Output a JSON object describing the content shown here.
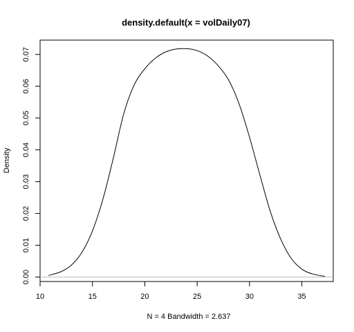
{
  "chart_data": {
    "type": "line",
    "title": "density.default(x = volDaily07)",
    "xlabel": "N = 4   Bandwidth = 2.637",
    "ylabel": "Density",
    "xlim": [
      10.0,
      38.0
    ],
    "ylim": [
      -0.0014,
      0.0745
    ],
    "x_ticks": [
      10,
      15,
      20,
      25,
      30,
      35
    ],
    "y_ticks": [
      0.0,
      0.01,
      0.02,
      0.03,
      0.04,
      0.05,
      0.06,
      0.07
    ],
    "x_tick_labels": [
      "10",
      "15",
      "20",
      "25",
      "30",
      "35"
    ],
    "y_tick_labels": [
      "0.00",
      "0.01",
      "0.02",
      "0.03",
      "0.04",
      "0.05",
      "0.06",
      "0.07"
    ],
    "grid": false,
    "baseline": {
      "y": 0,
      "color": "#bebebe"
    },
    "series": [
      {
        "color": "#000000",
        "x": [
          10.8,
          12.0,
          13.0,
          14.0,
          15.0,
          16.0,
          17.0,
          18.0,
          19.0,
          20.0,
          21.0,
          22.0,
          23.0,
          24.0,
          25.0,
          26.0,
          27.0,
          28.0,
          29.0,
          30.0,
          31.0,
          32.0,
          33.0,
          34.0,
          35.0,
          36.0,
          37.2
        ],
        "y": [
          0.0005,
          0.0017,
          0.0038,
          0.0078,
          0.0145,
          0.0245,
          0.0375,
          0.0515,
          0.0605,
          0.0655,
          0.0688,
          0.0708,
          0.0717,
          0.0718,
          0.0712,
          0.0695,
          0.0665,
          0.062,
          0.0545,
          0.044,
          0.032,
          0.0205,
          0.0118,
          0.0058,
          0.0025,
          0.001,
          0.0002
        ]
      }
    ]
  }
}
